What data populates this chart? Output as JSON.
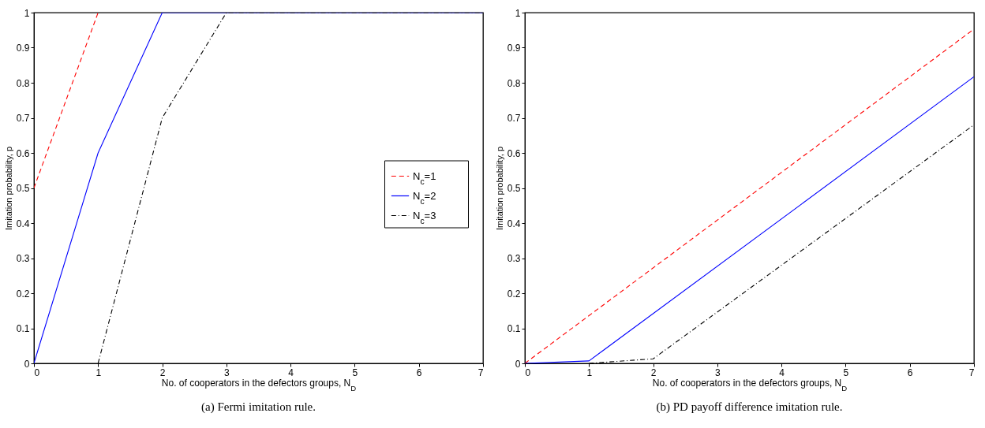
{
  "chart_data": [
    {
      "type": "line",
      "xlabel": "No. of cooperators in the defectors groups, N$_{D}$",
      "ylabel": "Imitation probability, p",
      "annotations": [
        "(a) Fermi imitation rule."
      ],
      "xlim": [
        0,
        7
      ],
      "xticks": [
        0,
        1,
        2,
        3,
        4,
        5,
        6,
        7
      ],
      "ylim": [
        0,
        1
      ],
      "yticks": [
        0,
        0.1,
        0.2,
        0.3,
        0.4,
        0.5,
        0.6,
        0.7,
        0.8,
        0.9,
        1
      ],
      "grid": false,
      "legend": "right",
      "series": [
        {
          "name": "N$_{c}$=1",
          "color": "#ff0000",
          "line_style": "dashed",
          "x": [
            0,
            1
          ],
          "values": [
            0.5,
            1
          ]
        },
        {
          "name": "N$_{c}$=2",
          "color": "#0000ff",
          "line_style": "solid",
          "x": [
            0,
            1,
            2,
            7
          ],
          "values": [
            0,
            0.6,
            1,
            1
          ]
        },
        {
          "name": "N$_{c}$=3",
          "color": "#000000",
          "line_style": "dashdot",
          "x": [
            1,
            2,
            3,
            7
          ],
          "values": [
            0,
            0.7,
            1,
            1
          ]
        }
      ]
    },
    {
      "type": "line",
      "xlabel": "No. of cooperators in the defectors groups, N$_{D}$",
      "ylabel": "Imitation probability, p",
      "annotations": [
        "(b) PD payoff difference imitation rule."
      ],
      "xlim": [
        0,
        7
      ],
      "xticks": [
        0,
        1,
        2,
        3,
        4,
        5,
        6,
        7
      ],
      "ylim": [
        0,
        1
      ],
      "yticks": [
        0,
        0.1,
        0.2,
        0.3,
        0.4,
        0.5,
        0.6,
        0.7,
        0.8,
        0.9,
        1
      ],
      "grid": false,
      "legend": "top left",
      "series": [
        {
          "name": "N$_{c}$=1",
          "color": "#ff0000",
          "line_style": "dashed",
          "x": [
            0,
            7
          ],
          "values": [
            0,
            0.953
          ]
        },
        {
          "name": "N$_{c}$=2",
          "color": "#0000ff",
          "line_style": "solid",
          "x": [
            0,
            1,
            7
          ],
          "values": [
            0,
            0.007,
            0.817
          ]
        },
        {
          "name": "N$_{c}$=3",
          "color": "#000000",
          "line_style": "dashdot",
          "x": [
            1,
            2,
            7
          ],
          "values": [
            0,
            0.013,
            0.68
          ]
        }
      ]
    }
  ]
}
